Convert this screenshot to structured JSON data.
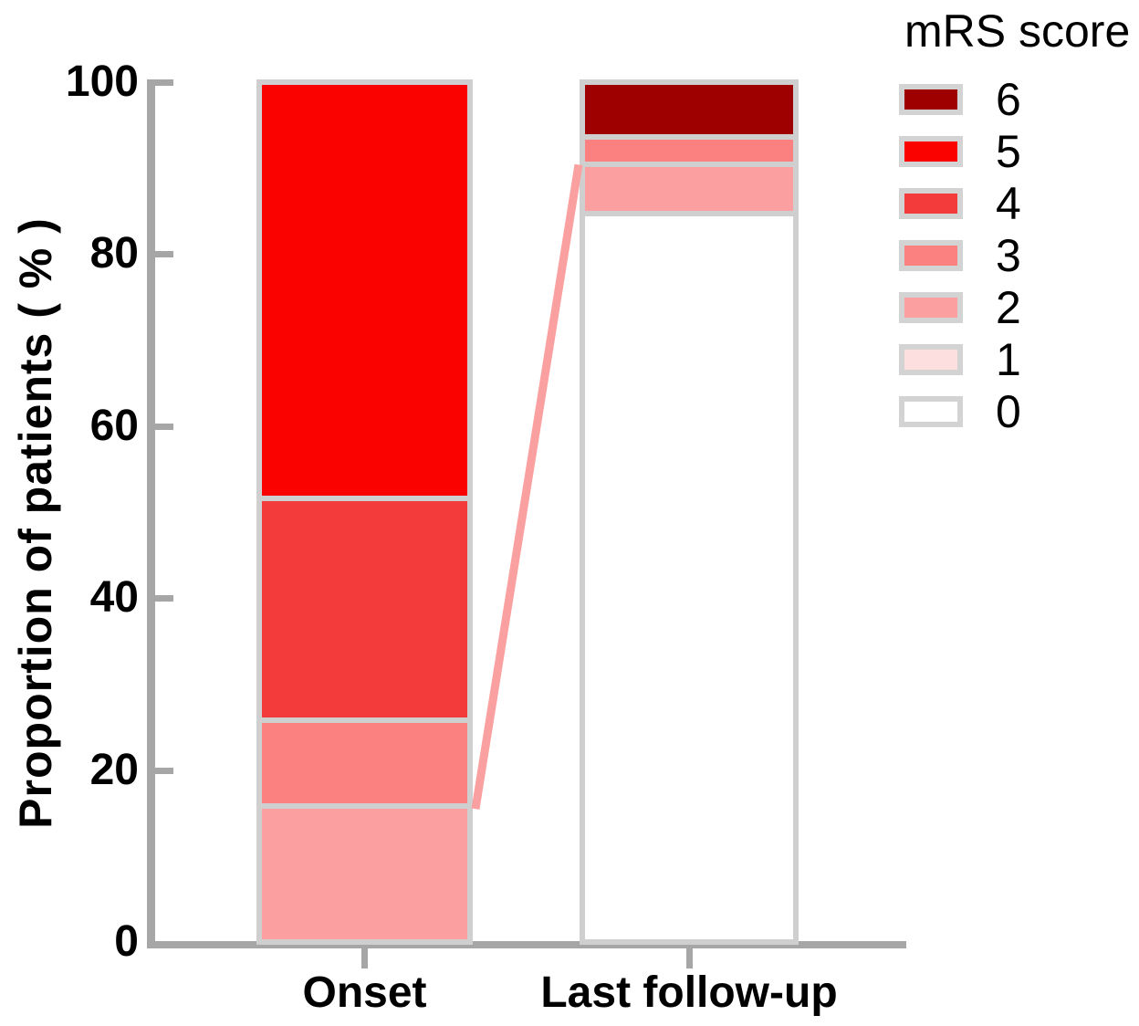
{
  "figure": {
    "type": "stacked-bar-figure",
    "background": "#ffffff",
    "text_color": "#000000"
  },
  "chart_data": {
    "type": "bar",
    "subtype": "stacked-percentage",
    "title": "",
    "xlabel": "",
    "ylabel": "Proportion of patients ( % )",
    "ylim": [
      0,
      100
    ],
    "yticks": [
      0,
      20,
      40,
      60,
      80,
      100
    ],
    "categories": [
      "Onset",
      "Last follow-up"
    ],
    "legend_title": "mRS score",
    "legend_position": "top-right",
    "grid": false,
    "axis_color": "#A6A6A6",
    "bar_border_color": "#CFCFCF",
    "swatch_border_color": "#D3D3D3",
    "series": [
      {
        "name": "6",
        "color": "#9E0000",
        "values": [
          0,
          6.4
        ]
      },
      {
        "name": "5",
        "color": "#FA0200",
        "values": [
          48.4,
          0
        ]
      },
      {
        "name": "4",
        "color": "#F43B3B",
        "values": [
          25.8,
          0
        ]
      },
      {
        "name": "3",
        "color": "#FB8080",
        "values": [
          10.0,
          3.2
        ]
      },
      {
        "name": "2",
        "color": "#FC9FA0",
        "values": [
          15.8,
          5.7
        ]
      },
      {
        "name": "1",
        "color": "#FDDFE0",
        "values": [
          0,
          0
        ]
      },
      {
        "name": "0",
        "color": "#FFFFFF",
        "values": [
          0,
          84.7
        ]
      }
    ],
    "stack_order_bottom_to_top": [
      "0",
      "1",
      "2",
      "3",
      "4",
      "5",
      "6"
    ],
    "connector_line": {
      "description": "connects top of mRS 2 segment of Onset bar to top of mRS 2 segment of Last follow-up bar",
      "from_percent": 15.8,
      "to_percent": 90.4,
      "color": "#FBA0A0"
    }
  }
}
